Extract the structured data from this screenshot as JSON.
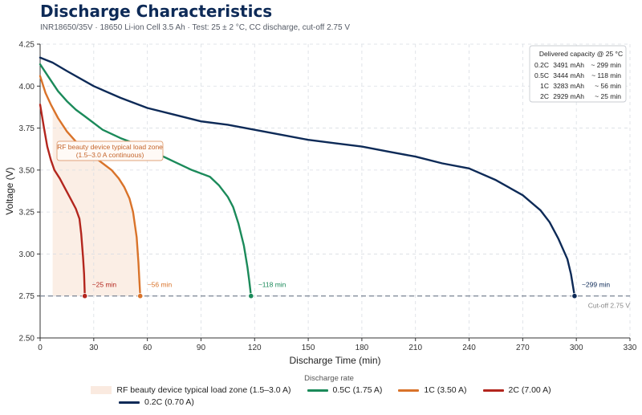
{
  "header": {
    "title": "Discharge Characteristics",
    "subtitle": "INR18650/35V  ·  18650 Li-ion Cell 3.5 Ah  ·  Test: 25 ± 2 °C, CC discharge, cut-off 2.75 V"
  },
  "chart_data": {
    "type": "line",
    "xlabel": "Discharge Time (min)",
    "ylabel": "Voltage (V)",
    "xlim": [
      0,
      330
    ],
    "ylim": [
      2.5,
      4.25
    ],
    "xticks": [
      0,
      30,
      60,
      90,
      120,
      150,
      180,
      210,
      240,
      270,
      300,
      330
    ],
    "yticks": [
      2.5,
      2.75,
      3.0,
      3.25,
      3.5,
      3.75,
      4.0,
      4.25
    ],
    "grid": true,
    "cutoff": {
      "value": 2.75,
      "label": "Cut-off 2.75 V"
    },
    "zone": {
      "label": "RF beauty device typical load zone (1.5–3.0 A)",
      "annotation_line1": "RF beauty device typical load zone",
      "annotation_line2": "(1.5–3.0 A continuous)",
      "color": "#f6d9c6"
    },
    "legend_title": "Discharge rate",
    "series": [
      {
        "name": "0.5C (1.75 A)",
        "color": "#1b8a5a",
        "end_label": "~118 min",
        "points": [
          [
            0,
            4.13
          ],
          [
            5,
            4.05
          ],
          [
            10,
            3.97
          ],
          [
            15,
            3.91
          ],
          [
            20,
            3.86
          ],
          [
            25,
            3.82
          ],
          [
            35,
            3.74
          ],
          [
            45,
            3.69
          ],
          [
            55,
            3.65
          ],
          [
            65,
            3.6
          ],
          [
            75,
            3.55
          ],
          [
            85,
            3.5
          ],
          [
            95,
            3.46
          ],
          [
            100,
            3.41
          ],
          [
            105,
            3.34
          ],
          [
            108,
            3.28
          ],
          [
            111,
            3.18
          ],
          [
            114,
            3.05
          ],
          [
            116,
            2.92
          ],
          [
            117,
            2.84
          ],
          [
            118,
            2.75
          ]
        ]
      },
      {
        "name": "1C (3.50 A)",
        "color": "#d9732a",
        "end_label": "~56 min",
        "points": [
          [
            0,
            4.06
          ],
          [
            3,
            3.96
          ],
          [
            6,
            3.89
          ],
          [
            10,
            3.81
          ],
          [
            15,
            3.73
          ],
          [
            20,
            3.67
          ],
          [
            25,
            3.62
          ],
          [
            30,
            3.58
          ],
          [
            35,
            3.54
          ],
          [
            40,
            3.5
          ],
          [
            44,
            3.45
          ],
          [
            47,
            3.4
          ],
          [
            50,
            3.33
          ],
          [
            52,
            3.25
          ],
          [
            54,
            3.1
          ],
          [
            55,
            2.95
          ],
          [
            56,
            2.75
          ]
        ]
      },
      {
        "name": "2C (7.00 A)",
        "color": "#b3261e",
        "end_label": "~25 min",
        "points": [
          [
            0,
            3.89
          ],
          [
            2,
            3.76
          ],
          [
            4,
            3.64
          ],
          [
            6,
            3.56
          ],
          [
            8,
            3.5
          ],
          [
            11,
            3.45
          ],
          [
            14,
            3.39
          ],
          [
            17,
            3.33
          ],
          [
            20,
            3.27
          ],
          [
            22,
            3.21
          ],
          [
            23,
            3.12
          ],
          [
            24,
            2.98
          ],
          [
            24.6,
            2.88
          ],
          [
            25,
            2.75
          ]
        ]
      },
      {
        "name": "0.2C (0.70 A)",
        "color": "#0d2a57",
        "end_label": "~299 min",
        "points": [
          [
            0,
            4.17
          ],
          [
            7,
            4.14
          ],
          [
            15,
            4.09
          ],
          [
            30,
            4.0
          ],
          [
            45,
            3.93
          ],
          [
            60,
            3.87
          ],
          [
            75,
            3.83
          ],
          [
            90,
            3.79
          ],
          [
            105,
            3.77
          ],
          [
            120,
            3.74
          ],
          [
            135,
            3.71
          ],
          [
            150,
            3.68
          ],
          [
            165,
            3.66
          ],
          [
            180,
            3.64
          ],
          [
            195,
            3.61
          ],
          [
            210,
            3.58
          ],
          [
            225,
            3.54
          ],
          [
            240,
            3.51
          ],
          [
            255,
            3.44
          ],
          [
            270,
            3.35
          ],
          [
            280,
            3.26
          ],
          [
            285,
            3.19
          ],
          [
            290,
            3.09
          ],
          [
            295,
            2.97
          ],
          [
            297,
            2.88
          ],
          [
            299,
            2.75
          ]
        ]
      }
    ],
    "capacity_box": {
      "title": "Delivered capacity @ 25 °C",
      "rows": [
        {
          "rate": "0.2C",
          "capacity": "3491 mAh",
          "time": "~ 299 min"
        },
        {
          "rate": "0.5C",
          "capacity": "3444 mAh",
          "time": "~ 118 min"
        },
        {
          "rate": "1C",
          "capacity": "3283 mAh",
          "time": "~ 56 min"
        },
        {
          "rate": "2C",
          "capacity": "2929 mAh",
          "time": "~ 25 min"
        }
      ]
    }
  }
}
